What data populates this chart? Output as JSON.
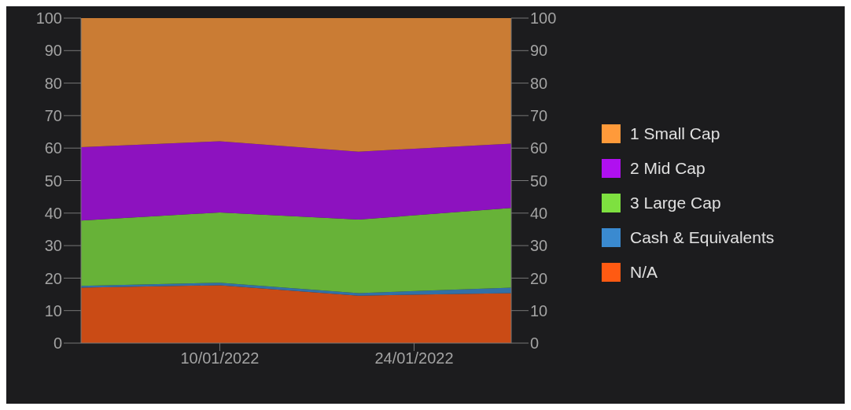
{
  "chart_data": {
    "type": "area",
    "stacked": true,
    "x": [
      "2021-12-31",
      "2022-01-10",
      "2022-01-20",
      "2022-01-31"
    ],
    "series": [
      {
        "name": "N/A",
        "color": "#ff5a12",
        "values": [
          17.1,
          17.8,
          14.6,
          15.4
        ]
      },
      {
        "name": "Cash & Equivalents",
        "color": "#3a8ad0",
        "values": [
          0.5,
          0.8,
          0.8,
          1.7
        ]
      },
      {
        "name": "3 Large Cap",
        "color": "#7ee040",
        "values": [
          20.1,
          21.6,
          22.6,
          24.5
        ]
      },
      {
        "name": "2 Mid Cap",
        "color": "#b010f0",
        "values": [
          22.6,
          21.9,
          20.9,
          19.8
        ]
      },
      {
        "name": "1 Small Cap",
        "color": "#ff9a3a",
        "values": [
          39.7,
          37.9,
          41.1,
          38.6
        ]
      }
    ],
    "xlim": [
      "2021-12-31",
      "2022-01-31"
    ],
    "xticks": [
      {
        "value": "2022-01-10",
        "label": "10/01/2022"
      },
      {
        "value": "2022-01-24",
        "label": "24/01/2022"
      }
    ],
    "ylim": [
      0,
      100
    ],
    "yticks": [
      0,
      10,
      20,
      30,
      40,
      50,
      60,
      70,
      80,
      90,
      100
    ],
    "y2lim": [
      0,
      100
    ],
    "y2ticks": [
      0,
      10,
      20,
      30,
      40,
      50,
      60,
      70,
      80,
      90,
      100
    ],
    "grid": false,
    "legend": "right"
  }
}
